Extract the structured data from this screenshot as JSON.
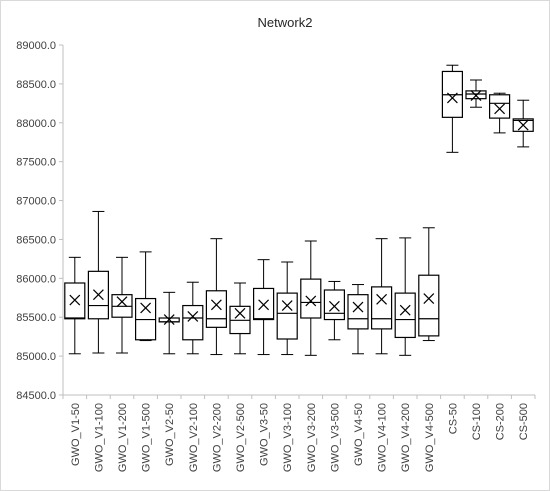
{
  "chart_data": {
    "type": "boxplot",
    "title": "Network2",
    "xlabel": "",
    "ylabel": "",
    "ylim": [
      84500,
      89000
    ],
    "y_ticks": [
      "84500.0",
      "85000.0",
      "85500.0",
      "86000.0",
      "86500.0",
      "87000.0",
      "87500.0",
      "88000.0",
      "88500.0",
      "89000.0"
    ],
    "y_tick_values": [
      84500,
      85000,
      85500,
      86000,
      86500,
      87000,
      87500,
      88000,
      88500,
      89000
    ],
    "grid": false,
    "legend": "none",
    "categories": [
      "GWO_V1-50",
      "GWO_V1-100",
      "GWO_V1-200",
      "GWO_V1-500",
      "GWO_V2-50",
      "GWO_V2-100",
      "GWO_V2-200",
      "GWO_V2-500",
      "GWO_V3-50",
      "GWO_V3-100",
      "GWO_V3-200",
      "GWO_V3-500",
      "GWO_V4-50",
      "GWO_V4-100",
      "GWO_V4-200",
      "GWO_V4-500",
      "CS-50",
      "CS-100",
      "CS-200",
      "CS-500"
    ],
    "boxes": [
      {
        "min": 85030,
        "q1": 85480,
        "median": 85490,
        "q3": 85940,
        "max": 86270,
        "mean": 85720
      },
      {
        "min": 85040,
        "q1": 85480,
        "median": 85650,
        "q3": 86090,
        "max": 86860,
        "mean": 85790
      },
      {
        "min": 85040,
        "q1": 85500,
        "median": 85640,
        "q3": 85790,
        "max": 86270,
        "mean": 85700
      },
      {
        "min": 85200,
        "q1": 85210,
        "median": 85470,
        "q3": 85740,
        "max": 86340,
        "mean": 85620
      },
      {
        "min": 85030,
        "q1": 85440,
        "median": 85440,
        "q3": 85490,
        "max": 85820,
        "mean": 85470
      },
      {
        "min": 85030,
        "q1": 85210,
        "median": 85490,
        "q3": 85650,
        "max": 85950,
        "mean": 85510
      },
      {
        "min": 85020,
        "q1": 85370,
        "median": 85480,
        "q3": 85840,
        "max": 86510,
        "mean": 85660
      },
      {
        "min": 85030,
        "q1": 85290,
        "median": 85460,
        "q3": 85640,
        "max": 85940,
        "mean": 85550
      },
      {
        "min": 85020,
        "q1": 85470,
        "median": 85480,
        "q3": 85870,
        "max": 86240,
        "mean": 85660
      },
      {
        "min": 85020,
        "q1": 85220,
        "median": 85550,
        "q3": 85810,
        "max": 86210,
        "mean": 85650
      },
      {
        "min": 85010,
        "q1": 85490,
        "median": 85690,
        "q3": 85990,
        "max": 86480,
        "mean": 85710
      },
      {
        "min": 85210,
        "q1": 85470,
        "median": 85550,
        "q3": 85850,
        "max": 85960,
        "mean": 85640
      },
      {
        "min": 85030,
        "q1": 85350,
        "median": 85480,
        "q3": 85790,
        "max": 85920,
        "mean": 85630
      },
      {
        "min": 85030,
        "q1": 85350,
        "median": 85480,
        "q3": 85890,
        "max": 86510,
        "mean": 85730
      },
      {
        "min": 85010,
        "q1": 85240,
        "median": 85470,
        "q3": 85810,
        "max": 86520,
        "mean": 85590
      },
      {
        "min": 85200,
        "q1": 85260,
        "median": 85480,
        "q3": 86040,
        "max": 86650,
        "mean": 85740
      },
      {
        "min": 87620,
        "q1": 88070,
        "median": 88360,
        "q3": 88660,
        "max": 88740,
        "mean": 88320
      },
      {
        "min": 88200,
        "q1": 88310,
        "median": 88370,
        "q3": 88410,
        "max": 88550,
        "mean": 88350
      },
      {
        "min": 87870,
        "q1": 88060,
        "median": 88250,
        "q3": 88360,
        "max": 88380,
        "mean": 88180
      },
      {
        "min": 87690,
        "q1": 87890,
        "median": 88030,
        "q3": 88050,
        "max": 88290,
        "mean": 87970
      }
    ],
    "colors": {
      "box_stroke": "#000000",
      "axis": "#bfbfbf",
      "text": "#404040"
    }
  }
}
